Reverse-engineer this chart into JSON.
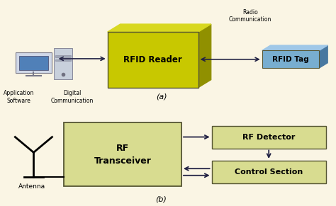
{
  "bg_color": "#faf5e4",
  "rfid_reader_color_front": "#c8c800",
  "rfid_reader_color_side": "#909000",
  "rfid_reader_color_top": "#d8d820",
  "rfid_tag_color_front": "#78aed0",
  "rfid_tag_color_side": "#4878a0",
  "rfid_tag_color_top": "#a0c8e8",
  "rf_box_color": "#d8dc90",
  "rf_box_edge": "#555533",
  "arrow_color": "#222244",
  "text_color": "#000000",
  "label_top": "(a)",
  "label_bottom": "(b)",
  "top_labels": {
    "rfid_reader": "RFID Reader",
    "rfid_tag": "RFID Tag",
    "radio_comm": "Radio\nCommunication",
    "app_software": "Application\nSoftware",
    "digital_comm": "Digital\nCommunication"
  },
  "bottom_labels": {
    "rf_transceiver": "RF\nTransceiver",
    "rf_detector": "RF Detector",
    "control_section": "Control Section",
    "antenna": "Antenna"
  }
}
